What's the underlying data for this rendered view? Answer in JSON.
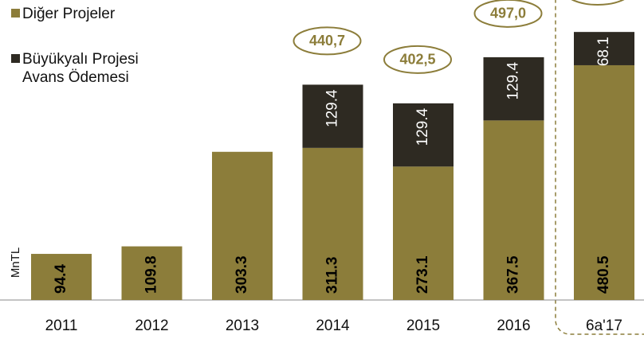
{
  "chart_data": {
    "type": "stacked_bar",
    "y_label": "MnTL",
    "categories": [
      "2011",
      "2012",
      "2013",
      "2014",
      "2015",
      "2016",
      "6a'17"
    ],
    "series": [
      {
        "name": "Diğer Projeler",
        "color": "#8c7d3a",
        "values": [
          94.4,
          109.8,
          303.3,
          311.3,
          273.1,
          367.5,
          480.5
        ]
      },
      {
        "name": "Büyükyalı Projesi Avans Ödemesi",
        "color": "#2e2a22",
        "values": [
          null,
          null,
          null,
          129.4,
          129.4,
          129.4,
          68.1
        ]
      }
    ],
    "totals": [
      null,
      null,
      null,
      440.7,
      402.5,
      497.0,
      null
    ],
    "total_labels": [
      null,
      null,
      null,
      "440,7",
      "402,5",
      "497,0",
      null
    ],
    "ylim": [
      0,
      600
    ]
  }
}
